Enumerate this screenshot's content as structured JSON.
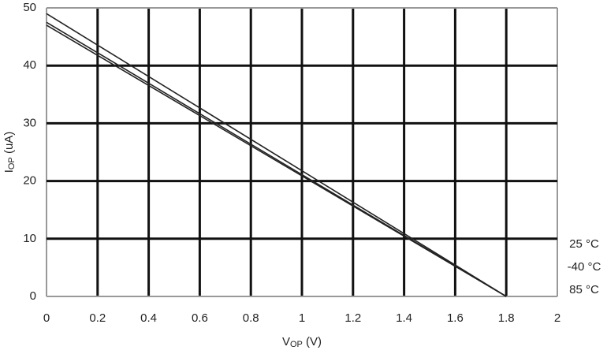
{
  "chart_data": {
    "type": "line",
    "xlabel": {
      "main": "V",
      "sub": "OP",
      "rest": " (V)"
    },
    "ylabel": {
      "main": "I",
      "sub": "OP",
      "rest": " (uA)"
    },
    "x": [
      0,
      1.8
    ],
    "series": [
      {
        "name": "25 °C",
        "color": "#222222",
        "values": [
          49,
          0
        ]
      },
      {
        "name": "-40 °C",
        "color": "#222222",
        "values": [
          47.5,
          0
        ]
      },
      {
        "name": "85 °C",
        "color": "#222222",
        "values": [
          47,
          0
        ]
      }
    ],
    "xlim": [
      0,
      2
    ],
    "ylim": [
      0,
      50
    ],
    "xticks": [
      0,
      0.2,
      0.4,
      0.6,
      0.8,
      1,
      1.2,
      1.4,
      1.6,
      1.8,
      2
    ],
    "yticks": [
      0,
      10,
      20,
      30,
      40,
      50
    ],
    "grid": true
  }
}
